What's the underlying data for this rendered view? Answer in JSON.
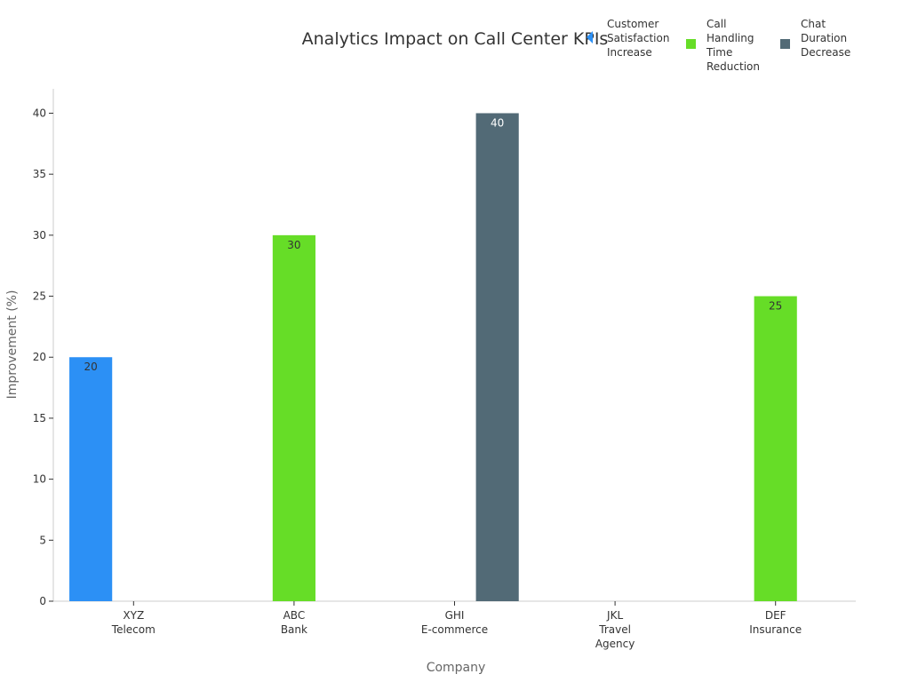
{
  "chart_data": {
    "type": "bar",
    "title": "Analytics Impact on Call Center KPIs",
    "xlabel": "Company",
    "ylabel": "Improvement (%)",
    "ylim": [
      0,
      42
    ],
    "yticks": [
      0,
      5,
      10,
      15,
      20,
      25,
      30,
      35,
      40
    ],
    "grid": false,
    "legend_position": "top-right",
    "categories": [
      [
        "XYZ",
        "Telecom"
      ],
      [
        "ABC",
        "Bank"
      ],
      [
        "GHI",
        "E-commerce"
      ],
      [
        "JKL",
        "Travel",
        "Agency"
      ],
      [
        "DEF",
        "Insurance"
      ]
    ],
    "series": [
      {
        "name": [
          "Customer",
          "Satisfaction",
          "Increase"
        ],
        "color": "#2c90f5",
        "label_color": "#333333",
        "values": [
          20,
          null,
          null,
          null,
          null
        ]
      },
      {
        "name": [
          "Call",
          "Handling",
          "Time",
          "Reduction"
        ],
        "color": "#66dd27",
        "label_color": "#333333",
        "values": [
          null,
          30,
          null,
          null,
          25
        ]
      },
      {
        "name": [
          "Chat",
          "Duration",
          "Decrease"
        ],
        "color": "#526a76",
        "label_color": "#ffffff",
        "values": [
          null,
          null,
          40,
          null,
          null
        ]
      }
    ]
  }
}
